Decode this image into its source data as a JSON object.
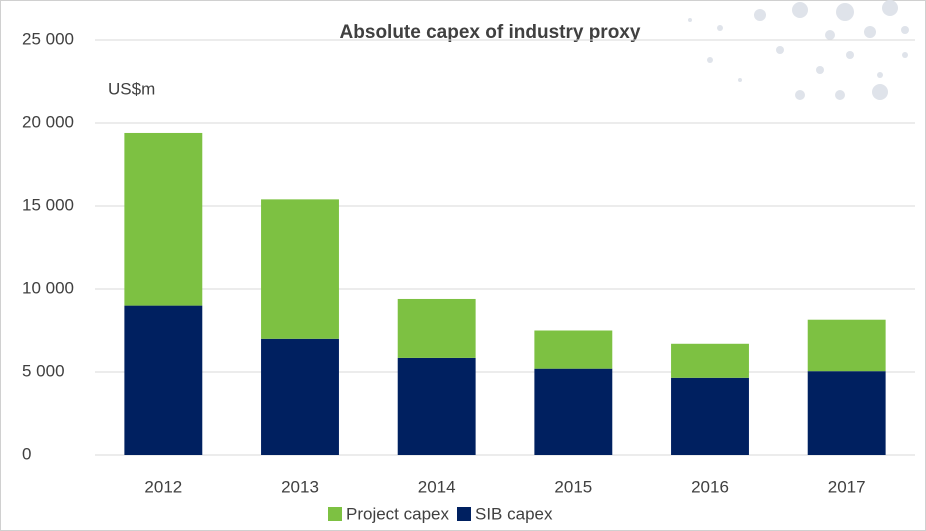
{
  "chart_data": {
    "type": "stacked_bar",
    "title": "Absolute capex of industry proxy",
    "annotation": "US$m",
    "categories": [
      "2012",
      "2013",
      "2014",
      "2015",
      "2016",
      "2017"
    ],
    "series": [
      {
        "name": "Project capex",
        "color": "#7dc142",
        "values": [
          10400,
          8400,
          3550,
          2300,
          2050,
          3100
        ]
      },
      {
        "name": "SIB capex",
        "color": "#002060",
        "values": [
          9000,
          7000,
          5850,
          5200,
          4650,
          5050
        ]
      }
    ],
    "ylim": [
      0,
      25000
    ],
    "yticks": [
      0,
      {
        "value": 5000,
        "label": "5 000"
      },
      {
        "value": 10000,
        "label": "10 000"
      },
      {
        "value": 15000,
        "label": "15 000"
      },
      {
        "value": 20000,
        "label": "20 000"
      },
      {
        "value": 25000,
        "label": "25 000"
      }
    ],
    "grid": true,
    "legend": "bottom"
  }
}
